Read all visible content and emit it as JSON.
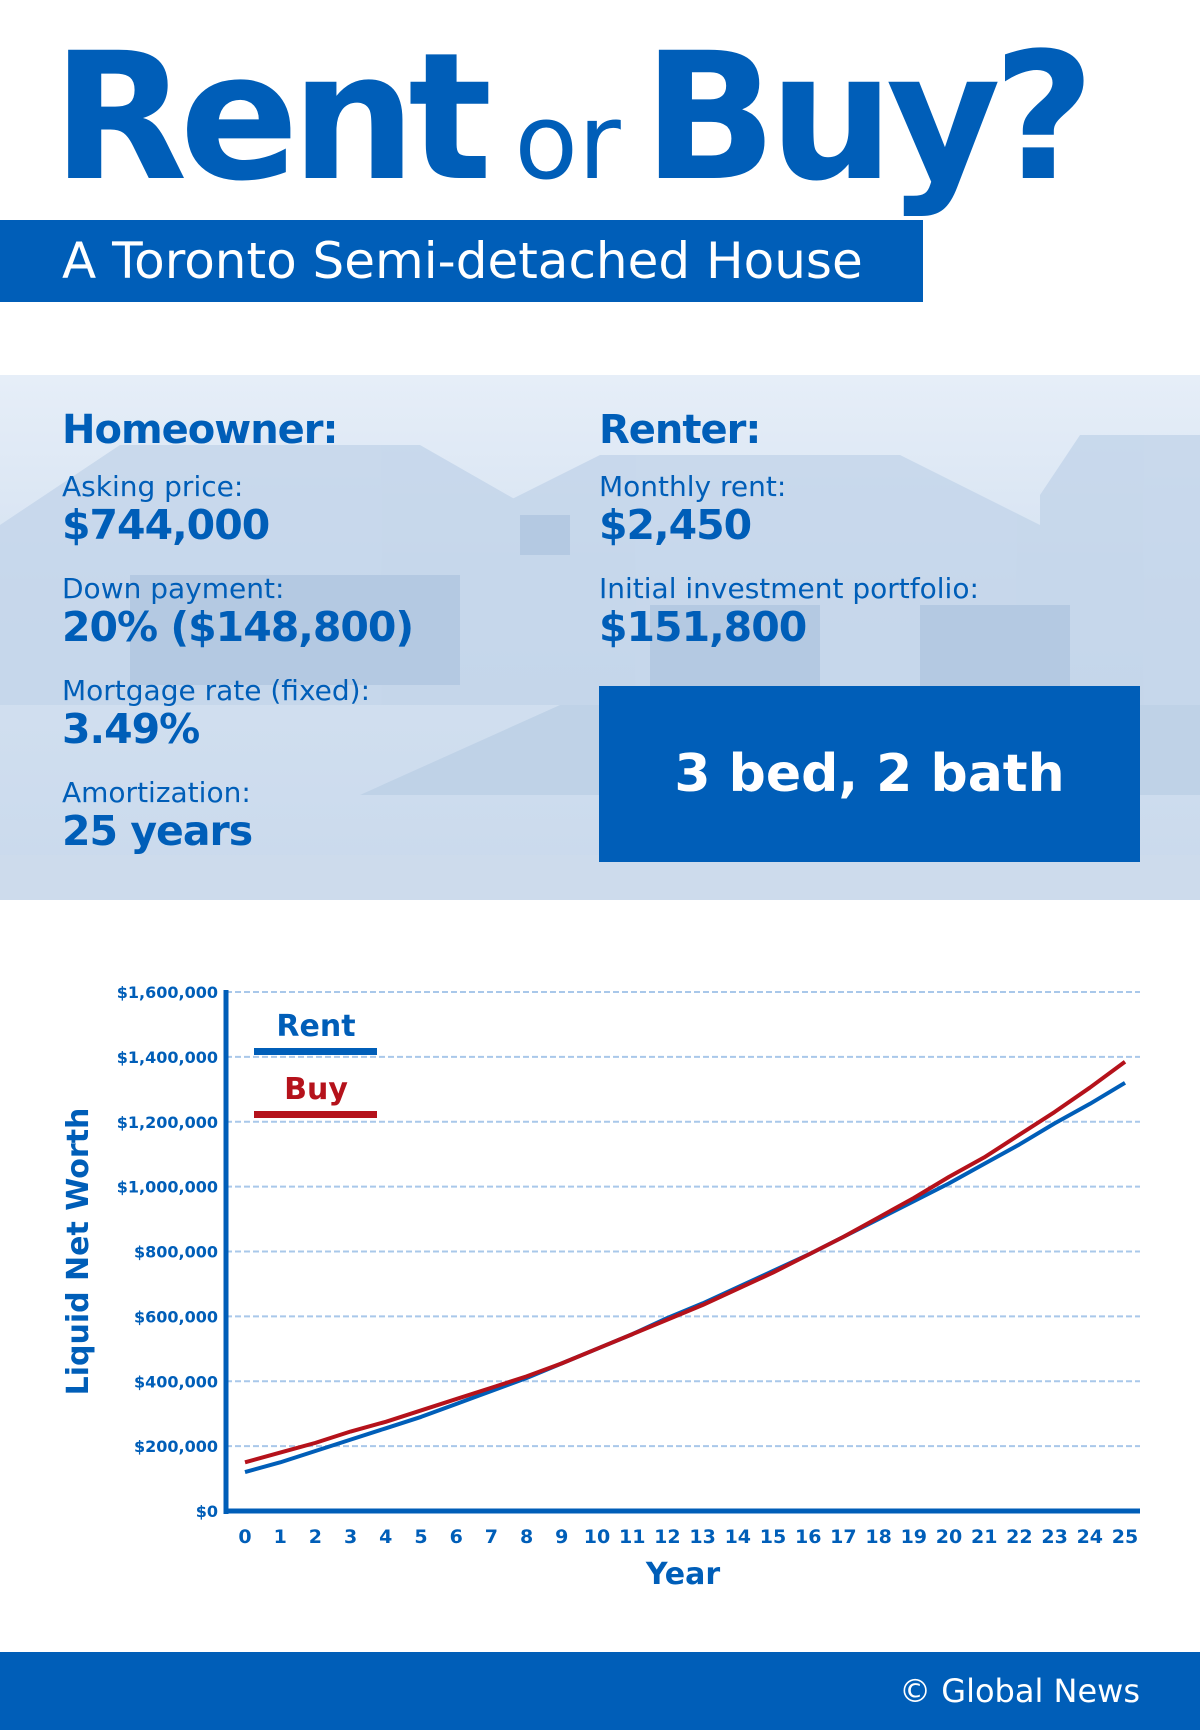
{
  "header": {
    "title_part1": "Rent",
    "title_or": "or",
    "title_part2": "Buy?",
    "subtitle": "A Toronto Semi-detached House"
  },
  "homeowner": {
    "heading": "Homeowner:",
    "items": [
      {
        "label": "Asking price:",
        "value": "$744,000"
      },
      {
        "label": "Down payment:",
        "value": "20% ($148,800)"
      },
      {
        "label": "Mortgage rate (fixed):",
        "value": "3.49%"
      },
      {
        "label": "Amortization:",
        "value": "25 years"
      }
    ]
  },
  "renter": {
    "heading": "Renter:",
    "items": [
      {
        "label": "Monthly rent:",
        "value": "$2,450"
      },
      {
        "label": "Initial investment portfolio:",
        "value": "$151,800"
      }
    ],
    "highlight": "3 bed, 2 bath"
  },
  "colors": {
    "brand": "#005eb8",
    "rent": "#005eb8",
    "buy": "#b5121b",
    "grid": "#a9c8ea"
  },
  "chart_data": {
    "type": "line",
    "xlabel": "Year",
    "ylabel": "Liquid Net Worth",
    "x": [
      0,
      1,
      2,
      3,
      4,
      5,
      6,
      7,
      8,
      9,
      10,
      11,
      12,
      13,
      14,
      15,
      16,
      17,
      18,
      19,
      20,
      21,
      22,
      23,
      24,
      25
    ],
    "ylim": [
      0,
      1600000
    ],
    "yticks": [
      "$0",
      "$200,000",
      "$400,000",
      "$600,000",
      "$800,000",
      "$1,000,000",
      "$1,200,000",
      "$1,400,000",
      "$1,600,000"
    ],
    "grid": true,
    "legend": "top-left",
    "series": [
      {
        "name": "Rent",
        "values": [
          120000,
          150000,
          185000,
          220000,
          255000,
          290000,
          330000,
          370000,
          410000,
          455000,
          500000,
          545000,
          595000,
          640000,
          690000,
          740000,
          790000,
          845000,
          900000,
          955000,
          1010000,
          1070000,
          1130000,
          1195000,
          1255000,
          1320000
        ]
      },
      {
        "name": "Buy",
        "values": [
          150000,
          180000,
          210000,
          245000,
          275000,
          310000,
          345000,
          380000,
          415000,
          455000,
          500000,
          545000,
          590000,
          635000,
          685000,
          735000,
          790000,
          845000,
          905000,
          965000,
          1030000,
          1090000,
          1160000,
          1230000,
          1305000,
          1385000
        ]
      }
    ]
  },
  "footer": {
    "credit": "© Global News"
  }
}
